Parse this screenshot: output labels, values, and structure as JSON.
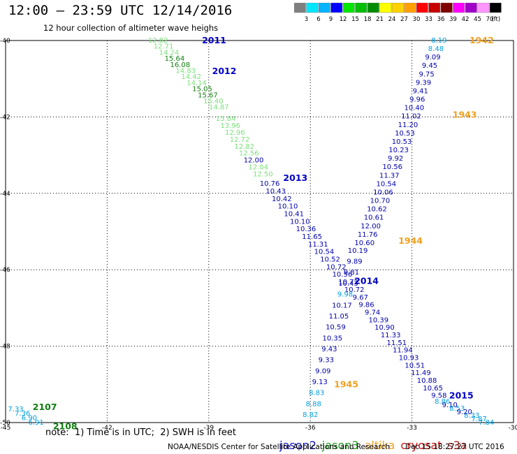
{
  "title": "12:00 – 23:59 UTC 12/14/2016",
  "subtitle": "12 hour collection of altimeter wave heighs",
  "note": "note:  1) Time is in UTC;  2) SWH is in feet",
  "footer_left": "NOAA/NESDIS Center for Satellite Applications and Research",
  "footer_right": "Dec 15 18:27:27 UTC 2016",
  "legend": [
    {
      "name": "jason2",
      "color": "#1010c8"
    },
    {
      "name": "jason3",
      "color": "#20a020"
    },
    {
      "name": "altika",
      "color": "#f0a020"
    },
    {
      "name": "cryosat",
      "color": "#d01010"
    },
    {
      "name": "s3a",
      "color": "#b02020"
    }
  ],
  "colorbar": {
    "labels": [
      "3",
      "6",
      "9",
      "12",
      "15",
      "18",
      "21",
      "24",
      "27",
      "30",
      "33",
      "36",
      "39",
      "42",
      "45",
      "70",
      "(ft)"
    ],
    "colors": [
      "#7f7f7f",
      "#00e6ff",
      "#00b4ff",
      "#0000ff",
      "#00e600",
      "#00be00",
      "#008c00",
      "#ffff00",
      "#ffd200",
      "#ffa000",
      "#ff0000",
      "#c80000",
      "#7f0000",
      "#ff00ff",
      "#a000c8",
      "#ff96ff",
      "#000000"
    ]
  },
  "chart_data": {
    "type": "scatter",
    "x_ticks": [
      "-45",
      "-42",
      "-39",
      "-36",
      "-33",
      "-30"
    ],
    "y_ticks": [
      "-40",
      "-42",
      "-44",
      "-46",
      "-48",
      "-50"
    ],
    "xlim": [
      -45,
      -30
    ],
    "ylim": [
      -50,
      -40
    ],
    "grid": true,
    "tracks": [
      {
        "id": "jason3-a",
        "color": "#20b020",
        "start": [
          -40.5,
          -40.0
        ],
        "end": [
          -38.7,
          -41.75
        ],
        "values": [
          "12.82",
          "12.71",
          "14.24",
          "15.64",
          "16.08",
          "14.83",
          "14.42",
          "14.14",
          "15.05",
          "15.67",
          "15.40",
          "14.87"
        ],
        "colors": [
          "#7ce07c",
          "#7ce07c",
          "#7ce07c",
          "#108010",
          "#108010",
          "#7ce07c",
          "#7ce07c",
          "#7ce07c",
          "#108010",
          "#108010",
          "#7ce07c",
          "#7ce07c"
        ]
      },
      {
        "id": "jason3-b",
        "color": "#40c040",
        "start": [
          -38.5,
          -42.05
        ],
        "end": [
          -37.4,
          -43.5
        ],
        "values": [
          "13.84",
          "13.96",
          "12.96",
          "12.72",
          "12.82",
          "12.56",
          "12.00",
          "12.04",
          "12.50"
        ],
        "colors": [
          "#7ce07c",
          "#7ce07c",
          "#7ce07c",
          "#7ce07c",
          "#7ce07c",
          "#7ce07c",
          "#0000b0",
          "#7ce07c",
          "#7ce07c"
        ]
      },
      {
        "id": "jason2-a",
        "color": "#0000b0",
        "start": [
          -37.2,
          -43.75
        ],
        "end": [
          -32.2,
          -49.3
        ],
        "values": [
          "10.76",
          "10.43",
          "10.42",
          "10.10",
          "10.41",
          "10.10",
          "10.36",
          "11.65",
          "11.31",
          "10.54",
          "10.52",
          "10.72",
          "10.56",
          "10.72",
          "10.72",
          "9.67",
          "9.86",
          "9.74",
          "10.39",
          "10.90",
          "11.33",
          "11.51",
          "11.94",
          "10.93",
          "10.51",
          "11.49",
          "10.88",
          "10.65",
          "9.58"
        ],
        "colors": [
          "#0000b0",
          "#0000b0",
          "#0000b0",
          "#0000b0",
          "#0000b0",
          "#0000b0",
          "#0000b0",
          "#0000b0",
          "#0000b0",
          "#0000b0",
          "#0000b0",
          "#0000b0",
          "#0000b0",
          "#0000b0",
          "#0000b0",
          "#0000b0",
          "#0000b0",
          "#0000b0",
          "#0000b0",
          "#0000b0",
          "#0000b0",
          "#0000b0",
          "#0000b0",
          "#0000b0",
          "#0000b0",
          "#0000b0",
          "#0000b0",
          "#0000b0",
          "#0000b0"
        ]
      },
      {
        "id": "jason2-b",
        "color": "#00a0e0",
        "start": [
          -32.1,
          -49.45
        ],
        "end": [
          -30.8,
          -50.0
        ],
        "values": [
          "8.86",
          "9.10",
          "8.53",
          "9.20",
          "8.33",
          "7.87",
          "7.84"
        ],
        "colors": [
          "#00a0e0",
          "#0000b0",
          "#00a0e0",
          "#0000b0",
          "#00a0e0",
          "#00a0e0",
          "#00a0e0"
        ]
      },
      {
        "id": "altika-a",
        "color": "#0000b0",
        "start": [
          -32.2,
          -40.0
        ],
        "end": [
          -34.4,
          -45.3
        ],
        "values": [
          "8.19",
          "8.48",
          "9.09",
          "9.45",
          "9.75",
          "9.39",
          "9.41",
          "9.96",
          "10.40",
          "11.02",
          "11.20",
          "10.53",
          "10.53",
          "10.23",
          "9.92",
          "10.56",
          "11.37",
          "10.54",
          "10.06",
          "10.70",
          "10.62",
          "10.61",
          "12.00",
          "11.76",
          "10.60"
        ],
        "colors": [
          "#00a0e0",
          "#00a0e0",
          "#0000b0",
          "#0000b0",
          "#0000b0",
          "#0000b0",
          "#0000b0",
          "#0000b0",
          "#0000b0",
          "#0000b0",
          "#0000b0",
          "#0000b0",
          "#0000b0",
          "#0000b0",
          "#0000b0",
          "#0000b0",
          "#0000b0",
          "#0000b0",
          "#0000b0",
          "#0000b0",
          "#0000b0",
          "#0000b0",
          "#0000b0",
          "#0000b0",
          "#0000b0"
        ]
      },
      {
        "id": "altika-b",
        "color": "#0000b0",
        "start": [
          -34.6,
          -45.5
        ],
        "end": [
          -36.0,
          -49.8
        ],
        "values": [
          "10.19",
          "9.89",
          "9.81",
          "10.43",
          "9.98",
          "10.17",
          "11.05",
          "10.59",
          "10.35",
          "9.43",
          "9.33",
          "9.09",
          "9.13",
          "8.83",
          "8.88",
          "8.82"
        ],
        "colors": [
          "#0000b0",
          "#0000b0",
          "#0000b0",
          "#0000b0",
          "#00a0e0",
          "#0000b0",
          "#0000b0",
          "#0000b0",
          "#0000b0",
          "#0000b0",
          "#0000b0",
          "#0000b0",
          "#0000b0",
          "#00a0e0",
          "#00a0e0",
          "#00a0e0"
        ]
      },
      {
        "id": "extra-a",
        "color": "#00a0e0",
        "start": [
          -44.7,
          -49.65
        ],
        "end": [
          -44.1,
          -50.0
        ],
        "values": [
          "7.33",
          "7.36",
          "6.90",
          "6.91"
        ],
        "colors": [
          "#00a0e0",
          "#00a0e0",
          "#00a0e0",
          "#00a0e0"
        ]
      }
    ],
    "time_labels": [
      {
        "text": "2011",
        "x": -39.2,
        "y": -40.0,
        "color": "#0000c8"
      },
      {
        "text": "2012",
        "x": -38.9,
        "y": -40.8,
        "color": "#0000c8"
      },
      {
        "text": "2013",
        "x": -36.8,
        "y": -43.6,
        "color": "#0000c8"
      },
      {
        "text": "2014",
        "x": -34.7,
        "y": -46.3,
        "color": "#0000c8"
      },
      {
        "text": "2015",
        "x": -31.9,
        "y": -49.3,
        "color": "#0000c8"
      },
      {
        "text": "1942",
        "x": -31.3,
        "y": -40.0,
        "color": "#f0a020"
      },
      {
        "text": "1943",
        "x": -31.8,
        "y": -41.95,
        "color": "#f0a020"
      },
      {
        "text": "1944",
        "x": -33.4,
        "y": -45.25,
        "color": "#f0a020"
      },
      {
        "text": "1945",
        "x": -35.3,
        "y": -49.0,
        "color": "#f0a020"
      },
      {
        "text": "2107",
        "x": -44.2,
        "y": -49.6,
        "color": "#108010"
      },
      {
        "text": "2108",
        "x": -43.6,
        "y": -50.1,
        "color": "#108010"
      }
    ]
  }
}
